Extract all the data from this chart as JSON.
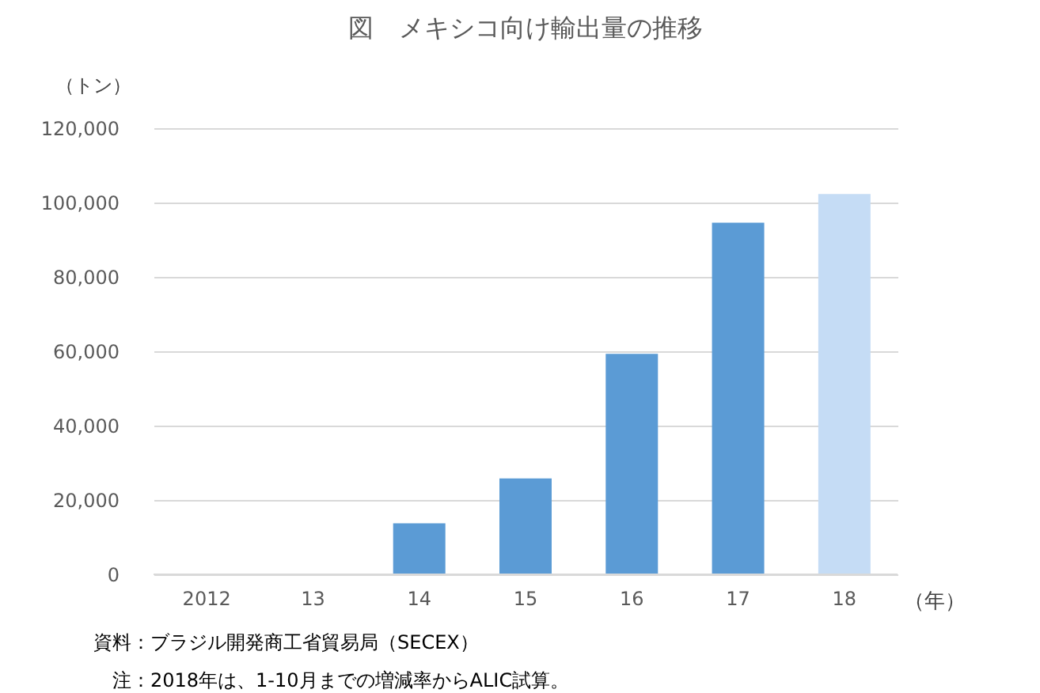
{
  "chart_data": {
    "type": "bar",
    "title": "図　メキシコ向け輸出量の推移",
    "ylabel": "（トン）",
    "xlabel": "（年）",
    "categories": [
      "2012",
      "13",
      "14",
      "15",
      "16",
      "17",
      "18"
    ],
    "values": [
      0,
      0,
      13700,
      25800,
      59300,
      94600,
      102300
    ],
    "colors": [
      "#5b9bd5",
      "#5b9bd5",
      "#5b9bd5",
      "#5b9bd5",
      "#5b9bd5",
      "#5b9bd5",
      "#c5dcf5"
    ],
    "ylim": [
      0,
      120000
    ],
    "yticks": [
      0,
      {
        "value": 20000,
        "label": "20,000"
      },
      {
        "value": 40000,
        "label": "40,000"
      },
      {
        "value": 60000,
        "label": "60,000"
      },
      {
        "value": 80000,
        "label": "80,000"
      },
      {
        "value": 100000,
        "label": "100,000"
      },
      {
        "value": 120000,
        "label": "120,000"
      }
    ],
    "grid": "y",
    "annotations": [
      "資料：ブラジル開発商工省貿易局（SECEX）",
      "注：2018年は、1-10月までの増減率からALIC試算。"
    ]
  }
}
